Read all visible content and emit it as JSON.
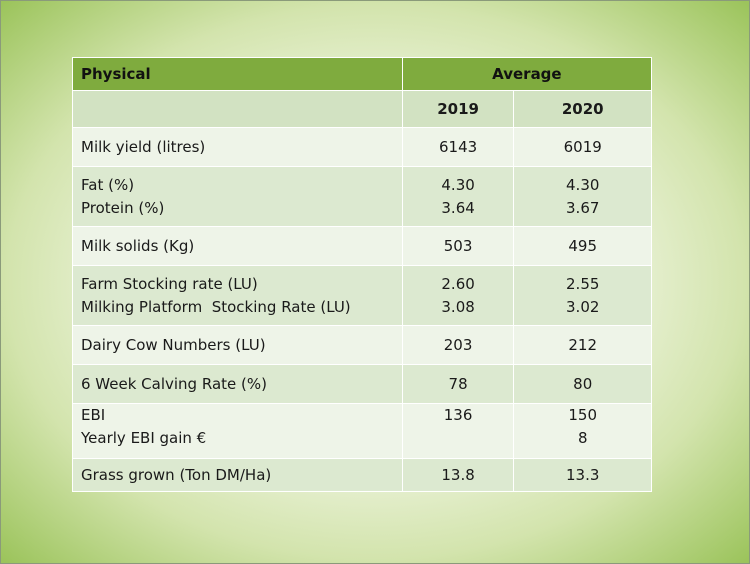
{
  "table": {
    "header": {
      "physical": "Physical",
      "average": "Average"
    },
    "years": [
      "2019",
      "2020"
    ],
    "rows": [
      {
        "labels": [
          "Milk yield (litres)"
        ],
        "v2019": [
          "6143"
        ],
        "v2020": [
          "6019"
        ]
      },
      {
        "labels": [
          "Fat (%)",
          "Protein (%)"
        ],
        "v2019": [
          "4.30",
          "3.64"
        ],
        "v2020": [
          "4.30",
          "3.67"
        ]
      },
      {
        "labels": [
          "Milk solids (Kg)"
        ],
        "v2019": [
          "503"
        ],
        "v2020": [
          "495"
        ]
      },
      {
        "labels": [
          "Farm Stocking rate (LU)",
          "Milking Platform  Stocking Rate (LU)"
        ],
        "v2019": [
          "2.60",
          "3.08"
        ],
        "v2020": [
          "2.55",
          "3.02"
        ]
      },
      {
        "labels": [
          "Dairy Cow Numbers (LU)"
        ],
        "v2019": [
          "203"
        ],
        "v2020": [
          "212"
        ]
      },
      {
        "labels": [
          "6 Week Calving Rate (%)"
        ],
        "v2019": [
          "78"
        ],
        "v2020": [
          "80"
        ]
      },
      {
        "labels": [
          "EBI",
          "Yearly EBI gain €"
        ],
        "v2019": [
          "136"
        ],
        "v2020": [
          "150",
          "8"
        ]
      },
      {
        "labels": [
          "Grass grown (Ton DM/Ha)"
        ],
        "v2019": [
          "13.8"
        ],
        "v2020": [
          "13.3"
        ]
      }
    ]
  }
}
